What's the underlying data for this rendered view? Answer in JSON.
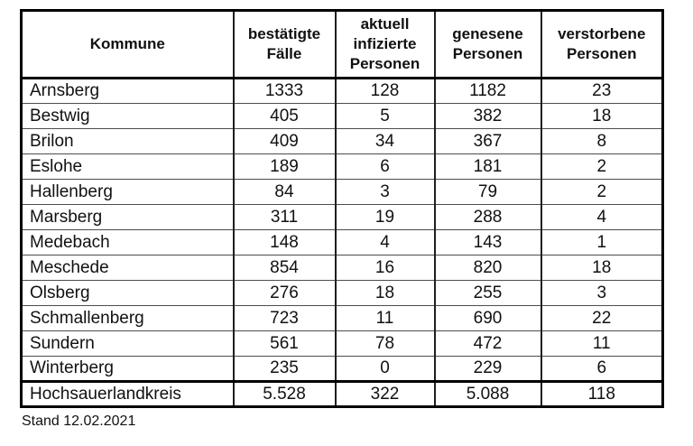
{
  "chart_data": {
    "type": "table",
    "columns": [
      "Kommune",
      "bestätigte Fälle",
      "aktuell infizierte Personen",
      "genesene Personen",
      "verstorbene Personen"
    ],
    "rows": [
      [
        "Arnsberg",
        "1333",
        "128",
        "1182",
        "23"
      ],
      [
        "Bestwig",
        "405",
        "5",
        "382",
        "18"
      ],
      [
        "Brilon",
        "409",
        "34",
        "367",
        "8"
      ],
      [
        "Eslohe",
        "189",
        "6",
        "181",
        "2"
      ],
      [
        "Hallenberg",
        "84",
        "3",
        "79",
        "2"
      ],
      [
        "Marsberg",
        "311",
        "19",
        "288",
        "4"
      ],
      [
        "Medebach",
        "148",
        "4",
        "143",
        "1"
      ],
      [
        "Meschede",
        "854",
        "16",
        "820",
        "18"
      ],
      [
        "Olsberg",
        "276",
        "18",
        "255",
        "3"
      ],
      [
        "Schmallenberg",
        "723",
        "11",
        "690",
        "22"
      ],
      [
        "Sundern",
        "561",
        "78",
        "472",
        "11"
      ],
      [
        "Winterberg",
        "235",
        "0",
        "229",
        "6"
      ]
    ],
    "total_row": [
      "Hochsauerlandkreis",
      "5.528",
      "322",
      "5.088",
      "118"
    ],
    "footnote": "Stand 12.02.2021",
    "layout": {
      "legend": "none",
      "grid": "table-borders"
    }
  },
  "colors": {
    "background": "#ffffff",
    "text": "#111111",
    "border_outer": "#000000",
    "border_column": "#1f1f1f",
    "border_row": "#4d4d4d"
  }
}
